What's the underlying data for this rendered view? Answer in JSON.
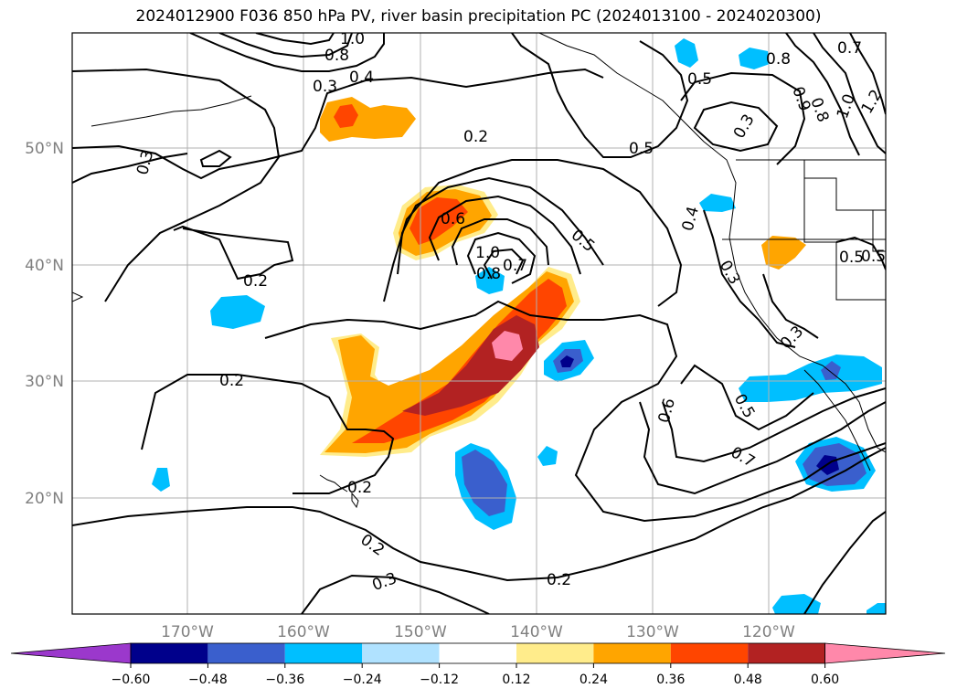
{
  "title": "2024012900 F036 850 hPa PV, river basin precipitation PC (2024013100 - 2024020300)",
  "map": {
    "lat_labels": [
      "20°N",
      "30°N",
      "40°N",
      "50°N"
    ],
    "lon_labels": [
      "170°W",
      "160°W",
      "150°W",
      "140°W",
      "130°W",
      "120°W"
    ],
    "contour_labels": [
      "1.0",
      "0.8",
      "0.4",
      "0.3",
      "0.2",
      "0.3",
      "0.2",
      "0.6",
      "1.0",
      "0.8",
      "0.7",
      "0.5",
      "0.5",
      "0.5",
      "0.3",
      "0.8",
      "0.7",
      "0.9",
      "0.8",
      "1.0",
      "1.2",
      "0.4",
      "0.3",
      "0.5",
      "0.5",
      "0.3",
      "0.2",
      "0.6",
      "0.5",
      "0.7",
      "0.2",
      "0.2",
      "0.3",
      "0.2"
    ],
    "grid_color": "#b0b0b0",
    "land_outline_color": "#000000",
    "contour_color": "#000000"
  },
  "colorbar": {
    "ticks": [
      "−0.60",
      "−0.48",
      "−0.36",
      "−0.24",
      "−0.12",
      "0.12",
      "0.24",
      "0.36",
      "0.48",
      "0.60"
    ],
    "colors": [
      "#9b38cc",
      "#00008b",
      "#3a5fcd",
      "#00bfff",
      "#b0e2ff",
      "#ffffff",
      "#ffec8b",
      "#ffa500",
      "#ff4500",
      "#b22222",
      "#ff88aa",
      "#ff88aa"
    ]
  }
}
